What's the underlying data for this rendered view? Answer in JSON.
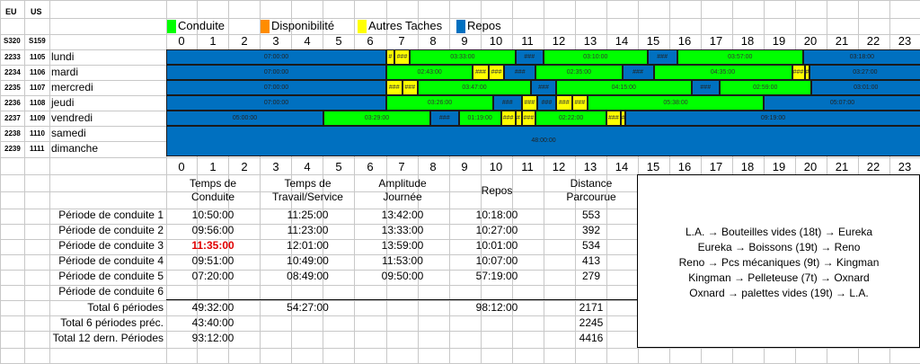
{
  "header": {
    "eu": "EU",
    "us": "US",
    "eu_s": "S320",
    "us_s": "S159"
  },
  "legend": [
    {
      "label": "Conduite",
      "color": "#00ff00"
    },
    {
      "label": "Disponibilité",
      "color": "#ff8c00"
    },
    {
      "label": "Autres Taches",
      "color": "#ffff00"
    },
    {
      "label": "Repos",
      "color": "#0070c0"
    }
  ],
  "hours": [
    "0",
    "1",
    "2",
    "3",
    "4",
    "5",
    "6",
    "7",
    "8",
    "9",
    "10",
    "11",
    "12",
    "13",
    "14",
    "15",
    "16",
    "17",
    "18",
    "19",
    "20",
    "21",
    "22",
    "23"
  ],
  "days": [
    {
      "eu": "2233",
      "us": "1105",
      "name": "lundi"
    },
    {
      "eu": "2234",
      "us": "1106",
      "name": "mardi"
    },
    {
      "eu": "2235",
      "us": "1107",
      "name": "mercredi"
    },
    {
      "eu": "2236",
      "us": "1108",
      "name": "jeudi"
    },
    {
      "eu": "2237",
      "us": "1109",
      "name": "vendredi"
    },
    {
      "eu": "2238",
      "us": "1110",
      "name": "samedi"
    },
    {
      "eu": "2239",
      "us": "1111",
      "name": "dimanche"
    }
  ],
  "timeline": [
    [
      {
        "t": "r",
        "s": 0,
        "e": 7.0,
        "label": "07:00:00"
      },
      {
        "t": "y",
        "s": 7.0,
        "e": 7.25,
        "label": "#"
      },
      {
        "t": "y",
        "s": 7.25,
        "e": 7.75,
        "label": "###"
      },
      {
        "t": "g",
        "s": 7.75,
        "e": 11.1,
        "label": "03:33:00"
      },
      {
        "t": "r",
        "s": 11.1,
        "e": 12.0,
        "label": "###"
      },
      {
        "t": "g",
        "s": 12.0,
        "e": 15.3,
        "label": "03:10:00"
      },
      {
        "t": "r",
        "s": 15.3,
        "e": 16.25,
        "label": "###"
      },
      {
        "t": "g",
        "s": 16.25,
        "e": 20.25,
        "label": "03:57:00"
      },
      {
        "t": "r",
        "s": 20.25,
        "e": 24.0,
        "label": "03:18:00"
      }
    ],
    [
      {
        "t": "r",
        "s": 0,
        "e": 7.0,
        "label": "07:00:00"
      },
      {
        "t": "g",
        "s": 7.0,
        "e": 9.75,
        "label": "02:43:00"
      },
      {
        "t": "y",
        "s": 9.75,
        "e": 10.25,
        "label": "###"
      },
      {
        "t": "y",
        "s": 10.25,
        "e": 10.75,
        "label": "###"
      },
      {
        "t": "r",
        "s": 10.75,
        "e": 11.75,
        "label": "###"
      },
      {
        "t": "g",
        "s": 11.75,
        "e": 14.5,
        "label": "02:35:00"
      },
      {
        "t": "r",
        "s": 14.5,
        "e": 15.5,
        "label": "###"
      },
      {
        "t": "g",
        "s": 15.5,
        "e": 19.9,
        "label": "04:35:00"
      },
      {
        "t": "y",
        "s": 19.9,
        "e": 20.3,
        "label": "###"
      },
      {
        "t": "y",
        "s": 20.3,
        "e": 20.45,
        "label": "#"
      },
      {
        "t": "r",
        "s": 20.45,
        "e": 24.0,
        "label": "03:27:00"
      }
    ],
    [
      {
        "t": "r",
        "s": 0,
        "e": 7.0,
        "label": "07:00:00"
      },
      {
        "t": "y",
        "s": 7.0,
        "e": 7.5,
        "label": "###"
      },
      {
        "t": "y",
        "s": 7.5,
        "e": 8.0,
        "label": "###"
      },
      {
        "t": "g",
        "s": 8.0,
        "e": 11.6,
        "label": "03:47:00"
      },
      {
        "t": "r",
        "s": 11.6,
        "e": 12.4,
        "label": "###"
      },
      {
        "t": "g",
        "s": 12.4,
        "e": 16.7,
        "label": "04:15:00"
      },
      {
        "t": "r",
        "s": 16.7,
        "e": 17.6,
        "label": "###"
      },
      {
        "t": "g",
        "s": 17.6,
        "e": 20.5,
        "label": "02:59:00"
      },
      {
        "t": "r",
        "s": 20.5,
        "e": 24.0,
        "label": "03:01:00"
      }
    ],
    [
      {
        "t": "r",
        "s": 0,
        "e": 7.0,
        "label": "07:00:00"
      },
      {
        "t": "g",
        "s": 7.0,
        "e": 10.4,
        "label": "03:26:00"
      },
      {
        "t": "r",
        "s": 10.4,
        "e": 11.3,
        "label": "###"
      },
      {
        "t": "y",
        "s": 11.3,
        "e": 11.8,
        "label": "###"
      },
      {
        "t": "r",
        "s": 11.8,
        "e": 12.4,
        "label": "###"
      },
      {
        "t": "y",
        "s": 12.4,
        "e": 12.9,
        "label": "###"
      },
      {
        "t": "y",
        "s": 12.9,
        "e": 13.4,
        "label": "###"
      },
      {
        "t": "g",
        "s": 13.4,
        "e": 19.0,
        "label": "05:38:00"
      },
      {
        "t": "r",
        "s": 19.0,
        "e": 24.0,
        "label": "05:07:00"
      }
    ],
    [
      {
        "t": "r",
        "s": 0,
        "e": 5.0,
        "label": "05:00:00"
      },
      {
        "t": "g",
        "s": 5.0,
        "e": 8.4,
        "label": "03:29:00"
      },
      {
        "t": "r",
        "s": 8.4,
        "e": 9.3,
        "label": "###"
      },
      {
        "t": "g",
        "s": 9.3,
        "e": 10.65,
        "label": "01:19:00"
      },
      {
        "t": "y",
        "s": 10.65,
        "e": 11.1,
        "label": "###"
      },
      {
        "t": "y",
        "s": 11.1,
        "e": 11.3,
        "label": "#"
      },
      {
        "t": "y",
        "s": 11.3,
        "e": 11.75,
        "label": "###"
      },
      {
        "t": "g",
        "s": 11.75,
        "e": 14.0,
        "label": "02:22:00"
      },
      {
        "t": "y",
        "s": 14.0,
        "e": 14.45,
        "label": "###"
      },
      {
        "t": "y",
        "s": 14.45,
        "e": 14.6,
        "label": "#"
      },
      {
        "t": "r",
        "s": 14.6,
        "e": 24.0,
        "label": "09:19:00"
      }
    ],
    [
      {
        "t": "r",
        "s": 0,
        "e": 24.0,
        "label": "48:00:00"
      }
    ]
  ],
  "table": {
    "headers": [
      [
        "Temps de",
        "Conduite"
      ],
      [
        "Temps de",
        "Travail/Service"
      ],
      [
        "Amplitude",
        "Journée"
      ],
      [
        "Repos"
      ],
      [
        "Distance",
        "Parcourue"
      ]
    ],
    "rows": [
      {
        "label": "Période de conduite 1",
        "cells": [
          "10:50:00",
          "11:25:00",
          "13:42:00",
          "10:18:00",
          "553"
        ]
      },
      {
        "label": "Période de conduite 2",
        "cells": [
          "09:56:00",
          "11:23:00",
          "13:33:00",
          "10:27:00",
          "392"
        ]
      },
      {
        "label": "Période de conduite 3",
        "cells": [
          "11:35:00",
          "12:01:00",
          "13:59:00",
          "10:01:00",
          "534"
        ],
        "alert": 0
      },
      {
        "label": "Période de conduite 4",
        "cells": [
          "09:51:00",
          "10:49:00",
          "11:53:00",
          "10:07:00",
          "413"
        ]
      },
      {
        "label": "Période de conduite 5",
        "cells": [
          "07:20:00",
          "08:49:00",
          "09:50:00",
          "57:19:00",
          "279"
        ]
      },
      {
        "label": "Période de conduite 6",
        "cells": [
          "",
          "",
          "",
          "",
          ""
        ]
      }
    ],
    "totals": [
      {
        "label": "Total 6 périodes",
        "cells": [
          "49:32:00",
          "54:27:00",
          "",
          "98:12:00",
          "2171"
        ]
      },
      {
        "label": "Total 6 périodes préc.",
        "cells": [
          "43:40:00",
          "",
          "",
          "",
          "2245"
        ]
      },
      {
        "label": "Total 12 dern. Périodes",
        "cells": [
          "93:12:00",
          "",
          "",
          "",
          "4416"
        ]
      }
    ]
  },
  "routes": [
    "L.A. → Bouteilles vides (18t) → Eureka",
    "Eureka → Boissons (19t) → Reno",
    "Reno → Pcs mécaniques (9t) → Kingman",
    "Kingman → Pelleteuse (7t) → Oxnard",
    "Oxnard → palettes vides (19t) → L.A."
  ],
  "colors": {
    "g": "#00ff00",
    "r": "#0070c0",
    "y": "#ffff00",
    "alert": "#e00000"
  }
}
